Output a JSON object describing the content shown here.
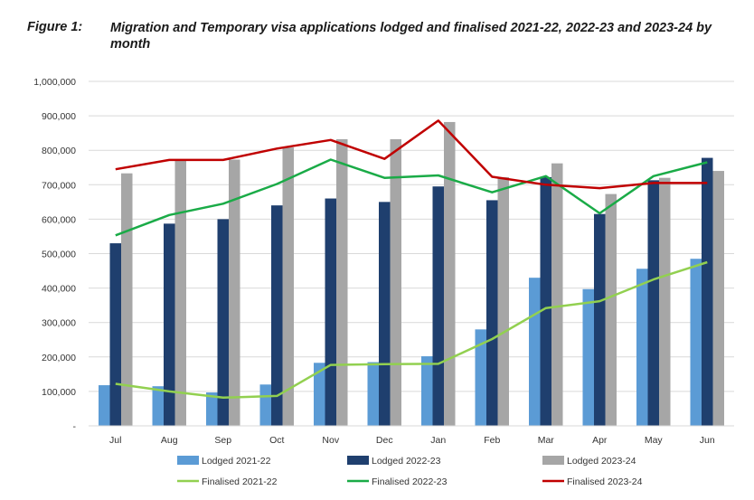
{
  "figure": {
    "label": "Figure 1:",
    "title": "Migration and Temporary visa applications lodged and finalised 2021-22, 2022-23 and 2023-24 by month"
  },
  "chart_data": {
    "type": "bar",
    "categories": [
      "Jul",
      "Aug",
      "Sep",
      "Oct",
      "Nov",
      "Dec",
      "Jan",
      "Feb",
      "Mar",
      "Apr",
      "May",
      "Jun"
    ],
    "y_tick_labels": [
      "-",
      "100,000",
      "200,000",
      "300,000",
      "400,000",
      "500,000",
      "600,000",
      "700,000",
      "800,000",
      "900,000",
      "1,000,000"
    ],
    "ylim": [
      0,
      1000000
    ],
    "grid": true,
    "legend_position": "bottom",
    "bar_series": [
      {
        "name": "Lodged 2021-22",
        "color": "#5b9bd5",
        "values": [
          118000,
          115000,
          97000,
          120000,
          183000,
          185000,
          202000,
          280000,
          430000,
          397000,
          456000,
          485000
        ]
      },
      {
        "name": "Lodged 2022-23",
        "color": "#1f3f6e",
        "values": [
          530000,
          587000,
          600000,
          640000,
          660000,
          650000,
          695000,
          655000,
          722000,
          615000,
          713000,
          778000
        ]
      },
      {
        "name": "Lodged 2023-24",
        "color": "#a6a6a6",
        "values": [
          733000,
          770000,
          773000,
          808000,
          832000,
          832000,
          882000,
          722000,
          762000,
          673000,
          720000,
          740000
        ]
      }
    ],
    "line_series": [
      {
        "name": "Finalised 2021-22",
        "color": "#92d050",
        "values": [
          122000,
          100000,
          82000,
          87000,
          177000,
          179000,
          180000,
          252000,
          342000,
          362000,
          425000,
          475000
        ]
      },
      {
        "name": "Finalised 2022-23",
        "color": "#1aab47",
        "values": [
          553000,
          612000,
          645000,
          702000,
          773000,
          720000,
          727000,
          678000,
          725000,
          617000,
          725000,
          765000
        ]
      },
      {
        "name": "Finalised 2023-24",
        "color": "#c00000",
        "values": [
          745000,
          772000,
          772000,
          805000,
          830000,
          775000,
          886000,
          723000,
          700000,
          690000,
          705000,
          705000
        ]
      }
    ]
  }
}
